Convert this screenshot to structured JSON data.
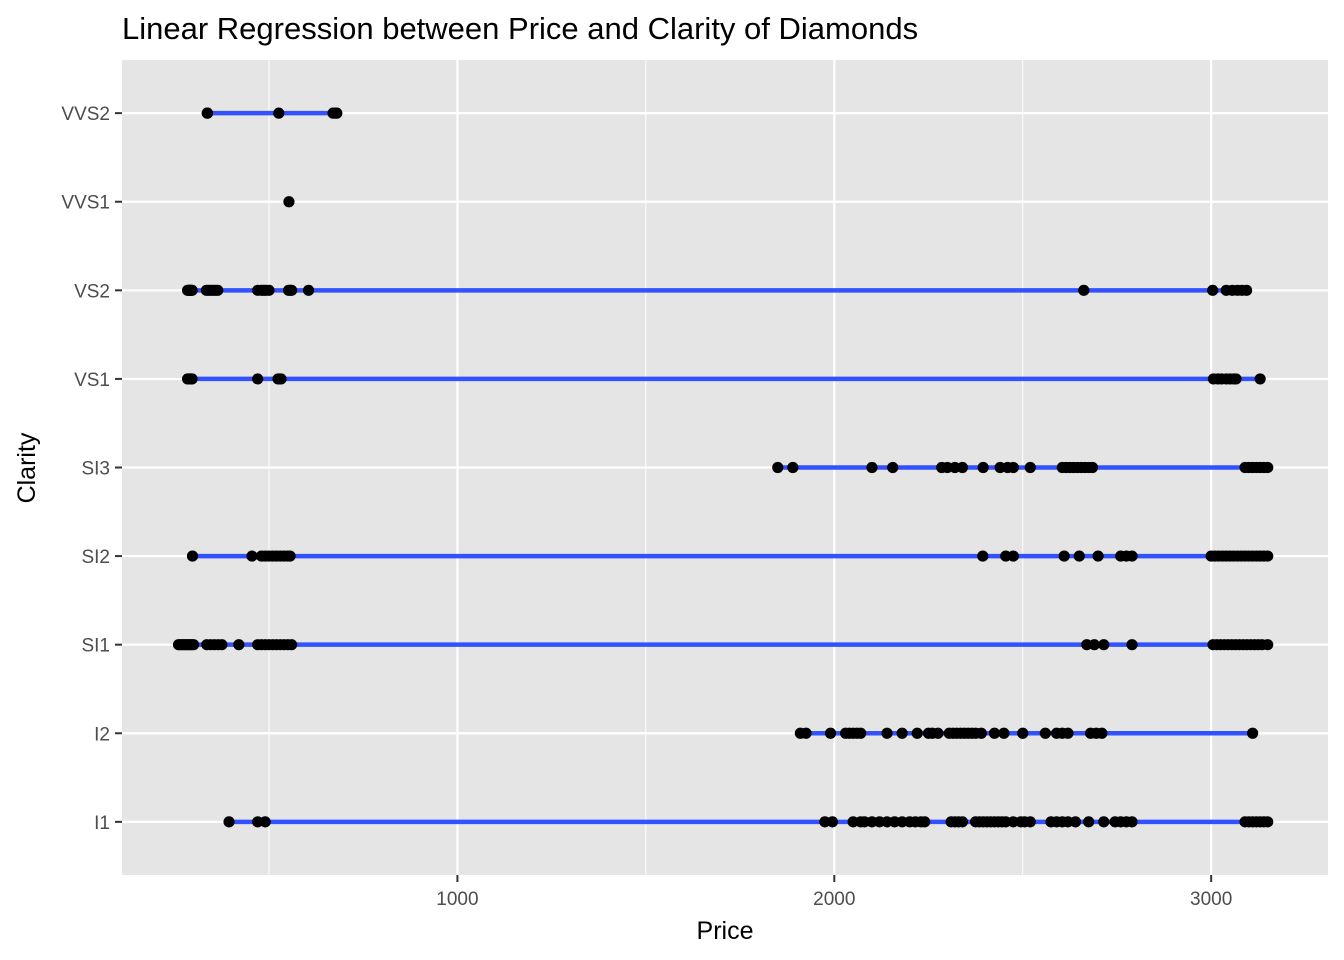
{
  "chart_data": {
    "type": "scatter",
    "title": "Linear Regression between Price and Clarity of Diamonds",
    "xlabel": "Price",
    "ylabel": "Clarity",
    "xlim": [
      110,
      3310
    ],
    "x_ticks": [
      1000,
      2000,
      3000
    ],
    "x_tick_labels": [
      "1000",
      "2000",
      "3000"
    ],
    "x_minor_ticks": [
      500,
      1500,
      2500
    ],
    "categories": [
      "I1",
      "I2",
      "SI1",
      "SI2",
      "SI3",
      "VS1",
      "VS2",
      "VVS1",
      "VVS2"
    ],
    "grid": true,
    "colors": {
      "panel_background": "#e5e5e5",
      "gridline": "#ffffff",
      "point": "#000000",
      "regression_line": "#3352ff",
      "tick_label": "#4d4d4d",
      "tick_mark": "#333333"
    },
    "series": [
      {
        "name": "VVS2",
        "points": [
          336,
          337,
          526,
          670,
          675,
          680
        ],
        "line": [
          336,
          680
        ]
      },
      {
        "name": "VVS1",
        "points": [
          553
        ],
        "line": null
      },
      {
        "name": "VS2",
        "points": [
          284,
          286,
          288,
          290,
          292,
          294,
          296,
          334,
          340,
          346,
          352,
          358,
          364,
          470,
          480,
          486,
          492,
          500,
          552,
          556,
          560,
          605,
          2662,
          3004,
          3040,
          3056,
          3070,
          3082,
          3094
        ],
        "line": [
          286,
          3094
        ]
      },
      {
        "name": "VS1",
        "points": [
          284,
          286,
          288,
          290,
          292,
          294,
          296,
          470,
          524,
          528,
          532,
          3006,
          3018,
          3028,
          3040,
          3050,
          3060,
          3066,
          3130
        ],
        "line": [
          296,
          3130
        ]
      },
      {
        "name": "SI3",
        "points": [
          1850,
          1890,
          2100,
          2155,
          2285,
          2300,
          2320,
          2340,
          2395,
          2440,
          2460,
          2475,
          2520,
          2605,
          2615,
          2625,
          2635,
          2645,
          2655,
          2665,
          2675,
          2685,
          3090,
          3100,
          3110,
          3120,
          3130,
          3140,
          3150
        ],
        "line": [
          1850,
          3150
        ]
      },
      {
        "name": "SI2",
        "points": [
          297,
          455,
          480,
          490,
          500,
          510,
          520,
          530,
          540,
          550,
          556,
          2394,
          2455,
          2475,
          2610,
          2650,
          2700,
          2760,
          2775,
          2790,
          3000,
          3010,
          3020,
          3030,
          3040,
          3050,
          3060,
          3070,
          3080,
          3090,
          3100,
          3110,
          3120,
          3130,
          3140,
          3150
        ],
        "line": [
          297,
          3150
        ]
      },
      {
        "name": "SI1",
        "points": [
          260,
          264,
          268,
          272,
          276,
          280,
          284,
          288,
          292,
          296,
          300,
          335,
          345,
          355,
          365,
          375,
          420,
          470,
          480,
          490,
          500,
          510,
          520,
          530,
          540,
          550,
          560,
          2670,
          2690,
          2715,
          2790,
          3005,
          3015,
          3025,
          3035,
          3045,
          3055,
          3065,
          3075,
          3085,
          3095,
          3105,
          3115,
          3125,
          3135,
          3150
        ],
        "line": [
          282,
          3150
        ]
      },
      {
        "name": "I2",
        "points": [
          1910,
          1925,
          1990,
          2030,
          2040,
          2050,
          2060,
          2070,
          2140,
          2180,
          2220,
          2250,
          2260,
          2275,
          2305,
          2315,
          2325,
          2335,
          2345,
          2355,
          2365,
          2375,
          2390,
          2425,
          2450,
          2500,
          2560,
          2590,
          2605,
          2620,
          2680,
          2695,
          2710,
          3110
        ],
        "line": [
          1910,
          3110
        ]
      },
      {
        "name": "I1",
        "points": [
          394,
          470,
          490,
          1975,
          1995,
          2050,
          2070,
          2080,
          2100,
          2120,
          2140,
          2160,
          2180,
          2200,
          2215,
          2230,
          2240,
          2310,
          2320,
          2330,
          2340,
          2375,
          2385,
          2395,
          2405,
          2415,
          2425,
          2435,
          2445,
          2455,
          2475,
          2495,
          2505,
          2520,
          2575,
          2590,
          2605,
          2620,
          2640,
          2675,
          2715,
          2745,
          2760,
          2775,
          2790,
          3090,
          3100,
          3110,
          3120,
          3130,
          3140,
          3150
        ],
        "line": [
          394,
          3150
        ]
      }
    ]
  }
}
